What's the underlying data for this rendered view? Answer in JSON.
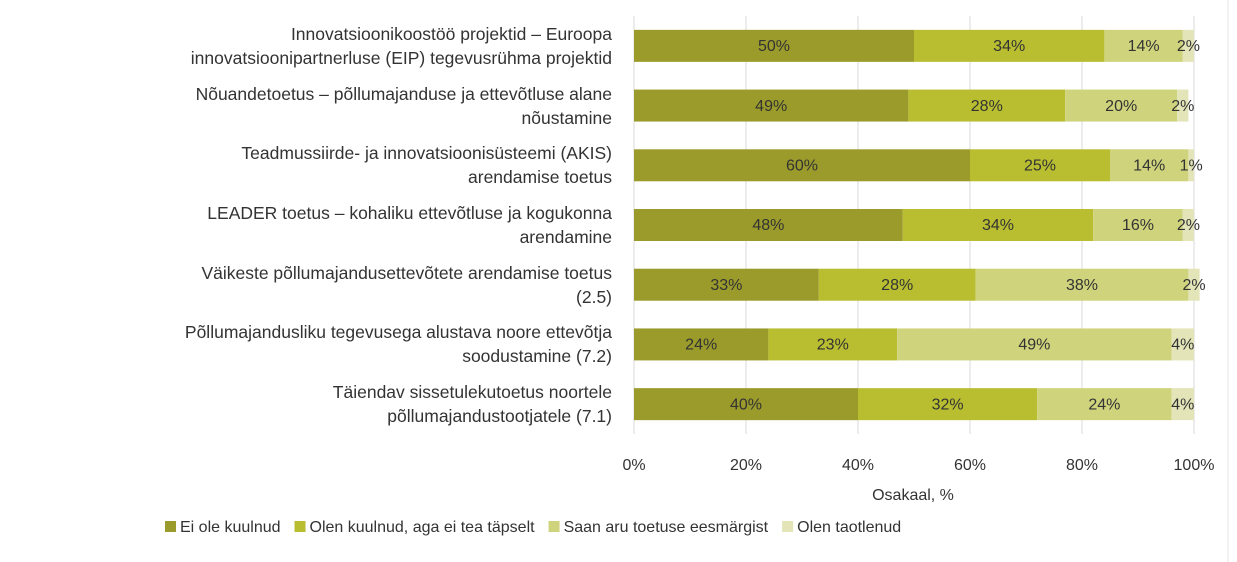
{
  "chart_data": {
    "type": "stacked_barh",
    "categories": [
      "Innovatsioonikoostöö projektid – Euroopa\ninnovatsioonipartnerluse (EIP) tegevusrühma projektid",
      "Nõuandetoetus – põllumajanduse ja ettevõtluse alane\nnõustamine",
      "Teadmussiirde- ja innovatsioonisüsteemi (AKIS)\narendamise toetus",
      "LEADER toetus – kohaliku ettevõtluse ja kogukonna\narendamine",
      "Väikeste põllumajandusettevõtete arendamise toetus\n(2.5)",
      "Põllumajandusliku tegevusega alustava noore ettevõtja\nsoodustamine  (7.2)",
      "Täiendav sissetulekutoetus noortele\npõllumajandustootjatele (7.1)"
    ],
    "series": [
      {
        "name": "Ei ole kuulnud",
        "color": "#9b9b2b",
        "values": [
          50,
          49,
          60,
          48,
          33,
          24,
          40
        ],
        "value_labels": [
          "50%",
          "49%",
          "60%",
          "48%",
          "33%",
          "24%",
          "40%"
        ]
      },
      {
        "name": "Olen kuulnud, aga ei tea täpselt",
        "color": "#b8be30",
        "values": [
          34,
          28,
          25,
          34,
          28,
          23,
          32
        ],
        "value_labels": [
          "34%",
          "28%",
          "25%",
          "34%",
          "28%",
          "23%",
          "32%"
        ]
      },
      {
        "name": "Saan aru toetuse eesmärgist",
        "color": "#cfd47c",
        "values": [
          14,
          20,
          14,
          16,
          38,
          49,
          24
        ],
        "value_labels": [
          "14%",
          "20%",
          "14%",
          "16%",
          "38%",
          "49%",
          "24%"
        ]
      },
      {
        "name": "Olen taotlenud",
        "color": "#e3e5b8",
        "values": [
          2,
          2,
          1,
          2,
          2,
          4,
          4
        ],
        "value_labels": [
          "2%",
          "2%",
          "1%",
          "2%",
          "2%",
          "4%",
          "4%"
        ]
      }
    ],
    "xlabel": "Osakaal, %",
    "xlim": [
      0,
      100
    ],
    "xticks": [
      {
        "value": 0,
        "label": "0%"
      },
      {
        "value": 20,
        "label": "20%"
      },
      {
        "value": 40,
        "label": "40%"
      },
      {
        "value": 60,
        "label": "60%"
      },
      {
        "value": 80,
        "label": "80%"
      },
      {
        "value": 100,
        "label": "100%"
      }
    ],
    "grid": true,
    "legend": "bottom"
  }
}
